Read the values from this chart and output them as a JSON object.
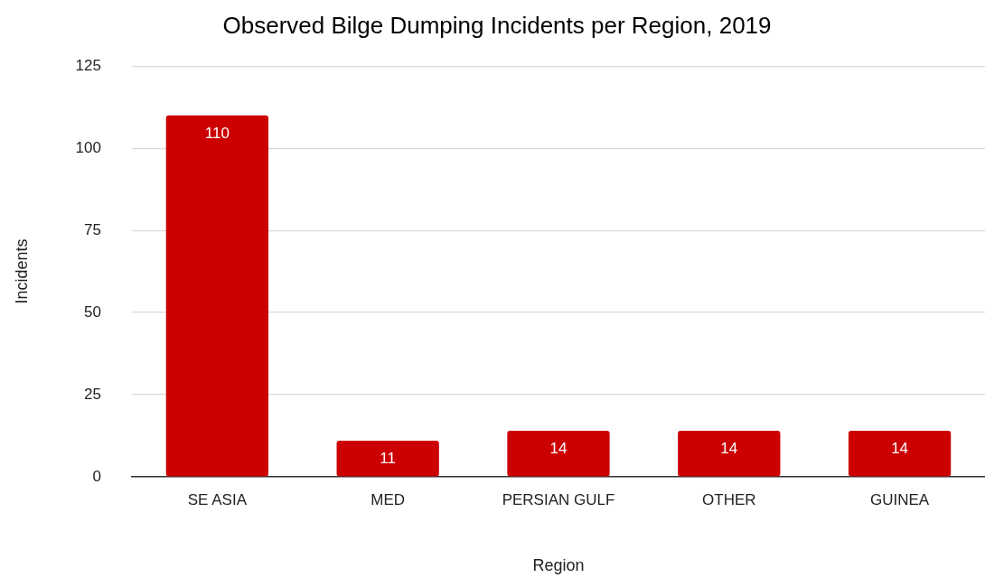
{
  "chart_data": {
    "type": "bar",
    "title": "Observed Bilge Dumping Incidents per Region, 2019",
    "xlabel": "Region",
    "ylabel": "Incidents",
    "categories": [
      "SE ASIA",
      "MED",
      "PERSIAN GULF",
      "OTHER",
      "GUINEA"
    ],
    "values": [
      110,
      11,
      14,
      14,
      14
    ],
    "color": "#cc0000",
    "ylim": [
      0,
      125
    ],
    "yticks": [
      0,
      25,
      50,
      75,
      100,
      125
    ],
    "grid": "y",
    "data_labels": true
  }
}
